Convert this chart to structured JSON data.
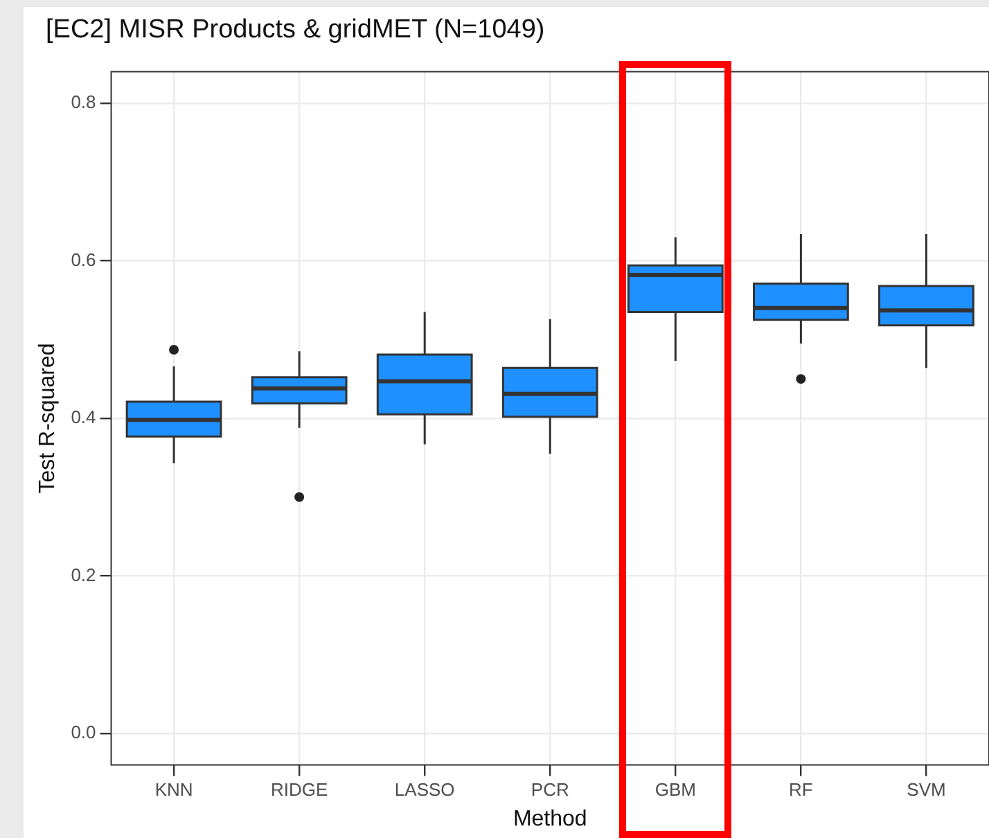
{
  "chart_data": {
    "type": "box",
    "title": "[EC2] MISR Products & gridMET (N=1049)",
    "xlabel": "Method",
    "ylabel": "Test R-squared",
    "categories": [
      "KNN",
      "RIDGE",
      "LASSO",
      "PCR",
      "GBM",
      "RF",
      "SVM"
    ],
    "series": [
      {
        "color": "#1e90ff",
        "boxes": [
          {
            "low": 0.343,
            "q1": 0.377,
            "median": 0.398,
            "q3": 0.421,
            "high": 0.466,
            "outliers": [
              0.487
            ]
          },
          {
            "low": 0.388,
            "q1": 0.419,
            "median": 0.438,
            "q3": 0.452,
            "high": 0.485,
            "outliers": [
              0.3
            ]
          },
          {
            "low": 0.367,
            "q1": 0.405,
            "median": 0.447,
            "q3": 0.481,
            "high": 0.535
          },
          {
            "low": 0.355,
            "q1": 0.402,
            "median": 0.431,
            "q3": 0.464,
            "high": 0.526
          },
          {
            "low": 0.473,
            "q1": 0.535,
            "median": 0.582,
            "q3": 0.594,
            "high": 0.63
          },
          {
            "low": 0.495,
            "q1": 0.525,
            "median": 0.54,
            "q3": 0.571,
            "high": 0.634,
            "outliers": [
              0.45
            ]
          },
          {
            "low": 0.464,
            "q1": 0.518,
            "median": 0.537,
            "q3": 0.568,
            "high": 0.634
          }
        ]
      }
    ],
    "ylim": [
      -0.04,
      0.84
    ],
    "yticks": [
      {
        "value": 0,
        "label": "0.0"
      },
      0.2,
      0.4,
      0.6,
      0.8
    ],
    "grid": true,
    "legend": false
  }
}
